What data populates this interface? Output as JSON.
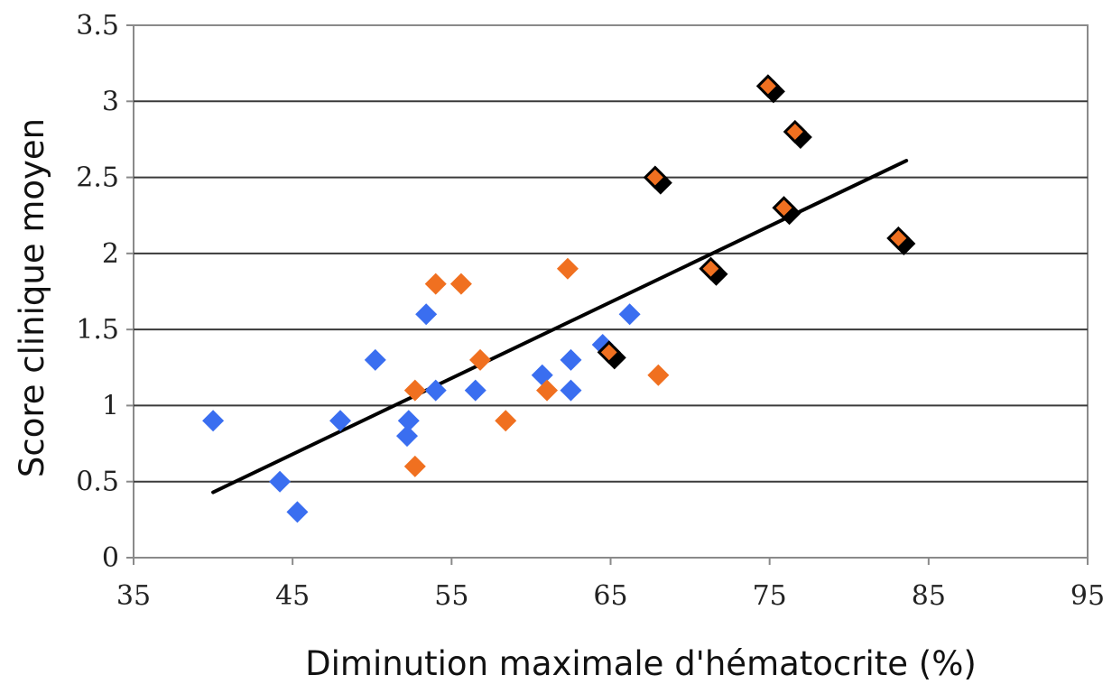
{
  "chart_data": {
    "type": "scatter",
    "xlabel": "Diminution maximale d'hématocrite (%)",
    "ylabel": "Score clinique moyen",
    "xlim": [
      35,
      95
    ],
    "ylim": [
      0,
      3.5
    ],
    "x_ticks": [
      "35",
      "45",
      "55",
      "65",
      "75",
      "85",
      "95"
    ],
    "y_ticks": [
      "0",
      "0.5",
      "1",
      "1.5",
      "2",
      "2.5",
      "3",
      "3.5"
    ],
    "grid": "horizontal",
    "legend": "none",
    "series": [
      {
        "color": "#3a6ef0",
        "marker": "diamond",
        "points": [
          [
            40,
            0.9
          ],
          [
            44.2,
            0.5
          ],
          [
            45.3,
            0.3
          ],
          [
            48,
            0.9
          ],
          [
            50.2,
            1.3
          ],
          [
            52.2,
            0.8
          ],
          [
            52.3,
            0.9
          ],
          [
            53.4,
            1.6
          ],
          [
            54,
            1.1
          ],
          [
            56.5,
            1.1
          ],
          [
            60.7,
            1.2
          ],
          [
            62.5,
            1.3
          ],
          [
            62.5,
            1.1
          ],
          [
            64.5,
            1.4
          ],
          [
            66.2,
            1.6
          ]
        ]
      },
      {
        "color": "#f07020",
        "marker": "diamond",
        "points": [
          [
            52.7,
            0.6
          ],
          [
            52.7,
            1.1
          ],
          [
            54,
            1.8
          ],
          [
            55.6,
            1.8
          ],
          [
            56.8,
            1.3
          ],
          [
            58.4,
            0.9
          ],
          [
            61,
            1.1
          ],
          [
            62.3,
            1.9
          ],
          [
            68,
            1.2
          ]
        ]
      },
      {
        "color": "#f07020",
        "edge_color": "#000000",
        "marker": "diamond-with-shadow",
        "points": [
          [
            64.9,
            1.35
          ],
          [
            67.8,
            2.5
          ],
          [
            71.3,
            1.9
          ],
          [
            74.9,
            3.1
          ],
          [
            75.9,
            2.3
          ],
          [
            76.6,
            2.8
          ],
          [
            83.1,
            2.1
          ]
        ]
      }
    ],
    "trendline": {
      "x": [
        40,
        83.6
      ],
      "y": [
        0.43,
        2.61
      ],
      "color": "#000000"
    }
  }
}
